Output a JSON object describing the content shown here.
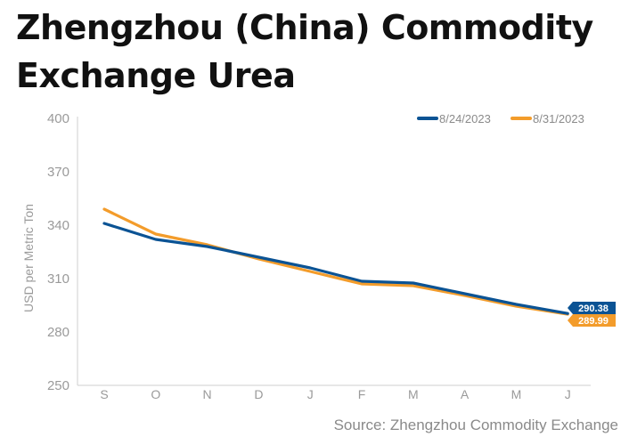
{
  "title": "Zhengzhou (China) Commodity Exchange Urea",
  "source": "Source: Zhengzhou Commodity Exchange",
  "chart_data": {
    "type": "line",
    "title": "Zhengzhou (China) Commodity Exchange Urea",
    "ylabel": "USD per Metric Ton",
    "xlabel": "",
    "categories": [
      "S",
      "O",
      "N",
      "D",
      "J",
      "F",
      "M",
      "A",
      "M",
      "J"
    ],
    "ylim": [
      250,
      400
    ],
    "yticks": [
      250,
      280,
      310,
      340,
      370,
      400
    ],
    "grid": false,
    "legend_position": "top-right",
    "series": [
      {
        "name": "8/24/2023",
        "color": "#0b5394",
        "values": [
          341,
          332,
          328,
          322,
          316,
          308.5,
          307.5,
          301.5,
          295.5,
          290.38
        ],
        "end_label": "290.38"
      },
      {
        "name": "8/31/2023",
        "color": "#f39c2b",
        "values": [
          349,
          335,
          329,
          321,
          314,
          307,
          306,
          300.5,
          294.5,
          289.99
        ],
        "end_label": "289.99"
      }
    ]
  }
}
